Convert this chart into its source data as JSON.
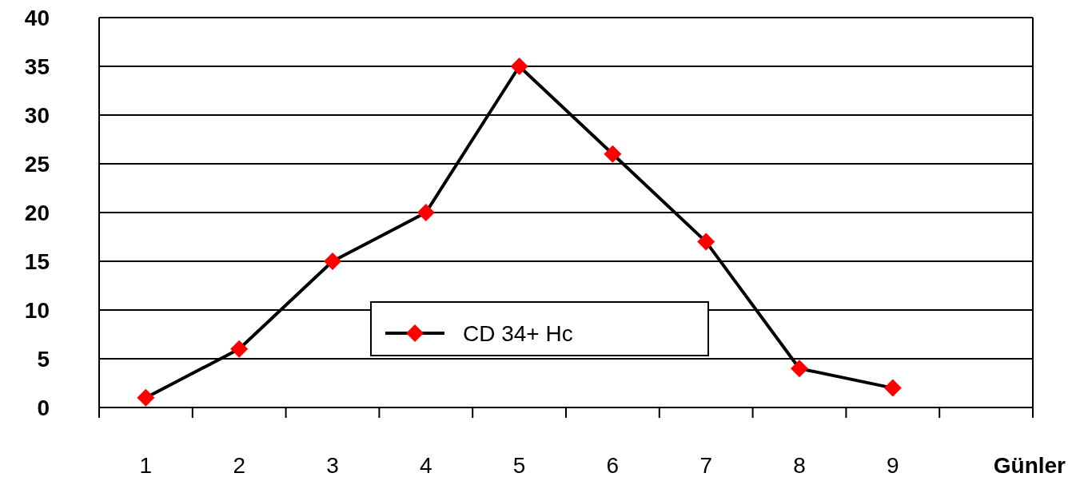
{
  "chart_data": {
    "type": "line",
    "xlabel": "Günler",
    "categories": [
      "1",
      "2",
      "3",
      "4",
      "5",
      "6",
      "7",
      "8",
      "9",
      null
    ],
    "series": [
      {
        "name": "CD 34+ Hc",
        "color": "#ff0000",
        "values": [
          1,
          6,
          15,
          20,
          35,
          26,
          17,
          4,
          2,
          null
        ]
      }
    ],
    "ylim": [
      0,
      40
    ],
    "yticks": [
      0,
      5,
      10,
      15,
      20,
      25,
      30,
      35,
      40
    ],
    "grid": "y",
    "legend": "bottom",
    "marker": "diamond",
    "line_style": "solid"
  }
}
